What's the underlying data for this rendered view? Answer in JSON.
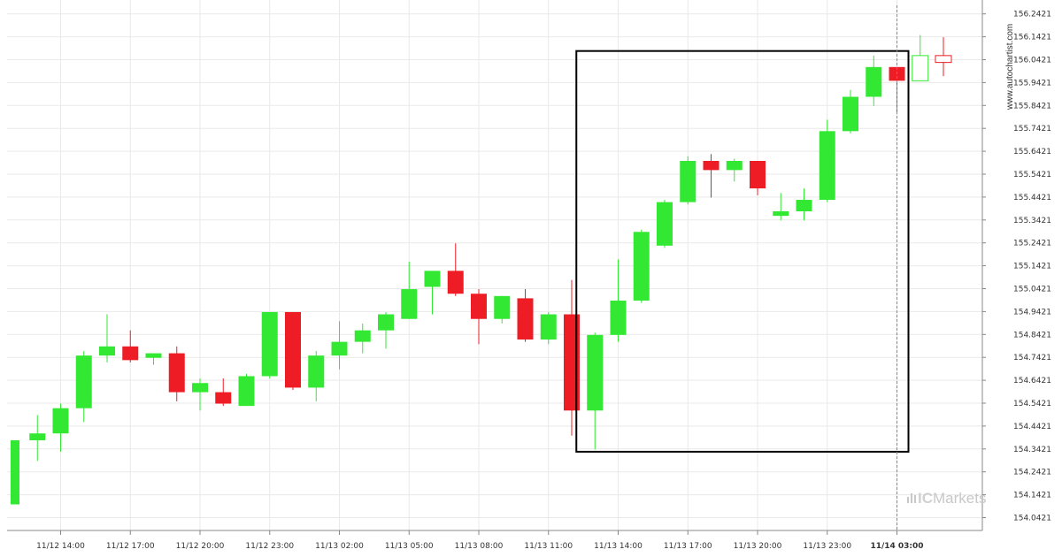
{
  "watermark": "www.autochartist.com",
  "brand": {
    "prefix": "IC",
    "name": "Markets"
  },
  "colors": {
    "bull": "#33e833",
    "bear": "#ee1c25",
    "grid": "#e9e9e9",
    "axis": "#888888",
    "pattern_box": "#000000",
    "current_time_line": "#888888"
  },
  "chart_data": {
    "type": "candlestick",
    "title": "",
    "xlabel": "",
    "ylabel": "",
    "grid": true,
    "y_axis_position": "right",
    "ylim": [
      153.99,
      156.26
    ],
    "y_ticks": [
      "156.2421",
      "156.1421",
      "156.0421",
      "155.9421",
      "155.8421",
      "155.7421",
      "155.6421",
      "155.5421",
      "155.4421",
      "155.3421",
      "155.2421",
      "155.1421",
      "155.0421",
      "154.9421",
      "154.8421",
      "154.7421",
      "154.6421",
      "154.5421",
      "154.4421",
      "154.3421",
      "154.2421",
      "154.1421",
      "154.0421"
    ],
    "x_ticks": [
      "11/12 14:00",
      "11/12 17:00",
      "11/12 20:00",
      "11/12 23:00",
      "11/13 02:00",
      "11/13 05:00",
      "11/13 08:00",
      "11/13 11:00",
      "11/13 14:00",
      "11/13 17:00",
      "11/13 20:00",
      "11/13 23:00",
      "11/14 03:00"
    ],
    "x_tick_bold_index": 12,
    "candles": [
      {
        "o": 154.1,
        "h": 154.38,
        "l": 154.1,
        "c": 154.38
      },
      {
        "o": 154.38,
        "h": 154.49,
        "l": 154.29,
        "c": 154.41
      },
      {
        "o": 154.41,
        "h": 154.54,
        "l": 154.33,
        "c": 154.52
      },
      {
        "o": 154.52,
        "h": 154.77,
        "l": 154.46,
        "c": 154.75
      },
      {
        "o": 154.75,
        "h": 154.93,
        "l": 154.72,
        "c": 154.79
      },
      {
        "o": 154.79,
        "h": 154.86,
        "l": 154.72,
        "c": 154.73
      },
      {
        "o": 154.74,
        "h": 154.76,
        "l": 154.71,
        "c": 154.76
      },
      {
        "o": 154.76,
        "h": 154.79,
        "l": 154.55,
        "c": 154.59
      },
      {
        "o": 154.59,
        "h": 154.65,
        "l": 154.51,
        "c": 154.63
      },
      {
        "o": 154.59,
        "h": 154.65,
        "l": 154.53,
        "c": 154.54
      },
      {
        "o": 154.53,
        "h": 154.67,
        "l": 154.53,
        "c": 154.66
      },
      {
        "o": 154.66,
        "h": 154.94,
        "l": 154.65,
        "c": 154.94
      },
      {
        "o": 154.94,
        "h": 154.94,
        "l": 154.6,
        "c": 154.61
      },
      {
        "o": 154.61,
        "h": 154.77,
        "l": 154.55,
        "c": 154.75
      },
      {
        "o": 154.75,
        "h": 154.9,
        "l": 154.69,
        "c": 154.81
      },
      {
        "o": 154.81,
        "h": 154.89,
        "l": 154.76,
        "c": 154.86
      },
      {
        "o": 154.86,
        "h": 154.94,
        "l": 154.78,
        "c": 154.93
      },
      {
        "o": 154.91,
        "h": 155.16,
        "l": 154.91,
        "c": 155.04
      },
      {
        "o": 155.05,
        "h": 155.12,
        "l": 154.93,
        "c": 155.12
      },
      {
        "o": 155.12,
        "h": 155.24,
        "l": 155.01,
        "c": 155.02
      },
      {
        "o": 155.02,
        "h": 155.04,
        "l": 154.8,
        "c": 154.91
      },
      {
        "o": 154.91,
        "h": 155.01,
        "l": 154.89,
        "c": 155.01
      },
      {
        "o": 155.0,
        "h": 155.04,
        "l": 154.81,
        "c": 154.82
      },
      {
        "o": 154.82,
        "h": 154.94,
        "l": 154.8,
        "c": 154.93
      },
      {
        "o": 154.93,
        "h": 155.08,
        "l": 154.4,
        "c": 154.51
      },
      {
        "o": 154.51,
        "h": 154.85,
        "l": 154.34,
        "c": 154.84
      },
      {
        "o": 154.84,
        "h": 155.17,
        "l": 154.81,
        "c": 154.99
      },
      {
        "o": 154.99,
        "h": 155.3,
        "l": 154.98,
        "c": 155.29
      },
      {
        "o": 155.23,
        "h": 155.43,
        "l": 155.22,
        "c": 155.42
      },
      {
        "o": 155.42,
        "h": 155.62,
        "l": 155.41,
        "c": 155.6
      },
      {
        "o": 155.6,
        "h": 155.63,
        "l": 155.44,
        "c": 155.56
      },
      {
        "o": 155.56,
        "h": 155.61,
        "l": 155.51,
        "c": 155.6
      },
      {
        "o": 155.6,
        "h": 155.6,
        "l": 155.45,
        "c": 155.48
      },
      {
        "o": 155.36,
        "h": 155.46,
        "l": 155.34,
        "c": 155.38
      },
      {
        "o": 155.38,
        "h": 155.48,
        "l": 155.34,
        "c": 155.43
      },
      {
        "o": 155.43,
        "h": 155.78,
        "l": 155.42,
        "c": 155.73
      },
      {
        "o": 155.73,
        "h": 155.91,
        "l": 155.72,
        "c": 155.88
      },
      {
        "o": 155.88,
        "h": 156.06,
        "l": 155.84,
        "c": 156.01
      },
      {
        "o": 156.01,
        "h": 156.01,
        "l": 155.81,
        "c": 155.95
      },
      {
        "o": 155.95,
        "h": 156.15,
        "l": 155.95,
        "c": 156.06,
        "projected": true
      },
      {
        "o": 156.06,
        "h": 156.14,
        "l": 155.97,
        "c": 156.03,
        "projected": true
      }
    ],
    "pattern_box": {
      "from_candle": 25,
      "to_candle": 38,
      "high": 156.08,
      "low": 154.33
    },
    "current_time_candle": 38
  }
}
